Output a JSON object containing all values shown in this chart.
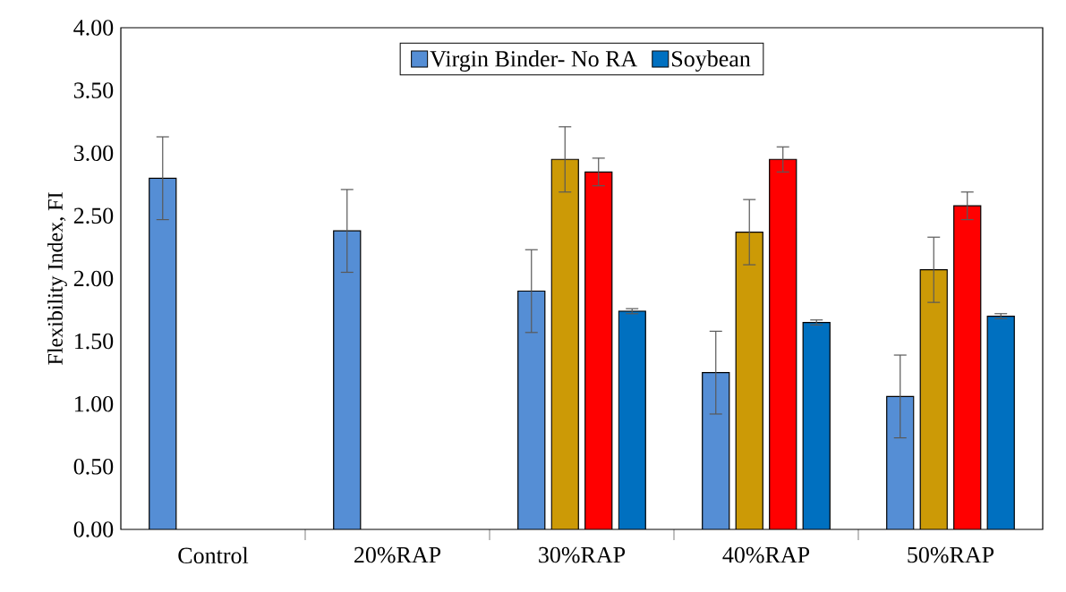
{
  "chart_data": {
    "type": "bar",
    "ylabel": "Flexibility Index, FI",
    "categories": [
      "Control",
      "20%RAP",
      "30%RAP",
      "40%RAP",
      "50%RAP"
    ],
    "series": [
      {
        "name": "Virgin Binder- No RA",
        "color": "#558ed5",
        "values": [
          2.8,
          2.38,
          1.9,
          1.25,
          1.06
        ],
        "errors": [
          0.33,
          0.33,
          0.33,
          0.33,
          0.33
        ]
      },
      {
        "color": "#cc9a06",
        "values": [
          null,
          null,
          2.95,
          2.37,
          2.07
        ],
        "errors": [
          null,
          null,
          0.26,
          0.26,
          0.26
        ]
      },
      {
        "color": "#ff0000",
        "values": [
          null,
          null,
          2.85,
          2.95,
          2.58
        ],
        "errors": [
          null,
          null,
          0.11,
          0.1,
          0.11
        ]
      },
      {
        "name": "Soybean",
        "color": "#0070c0",
        "values": [
          null,
          null,
          1.74,
          1.65,
          1.7
        ],
        "errors": [
          null,
          null,
          0.02,
          0.02,
          0.02
        ]
      }
    ],
    "ylim": [
      0,
      4
    ],
    "yticks": [
      {
        "value": 0,
        "label": "0.00"
      },
      {
        "value": 0.5,
        "label": "0.50"
      },
      {
        "value": 1,
        "label": "1.00"
      },
      {
        "value": 1.5,
        "label": "1.50"
      },
      {
        "value": 2,
        "label": "2.00"
      },
      {
        "value": 2.5,
        "label": "2.50"
      },
      {
        "value": 3,
        "label": "3.00"
      },
      {
        "value": 3.5,
        "label": "3.50"
      },
      {
        "value": 4,
        "label": "4.00"
      }
    ],
    "grid": false,
    "legend": "top"
  }
}
